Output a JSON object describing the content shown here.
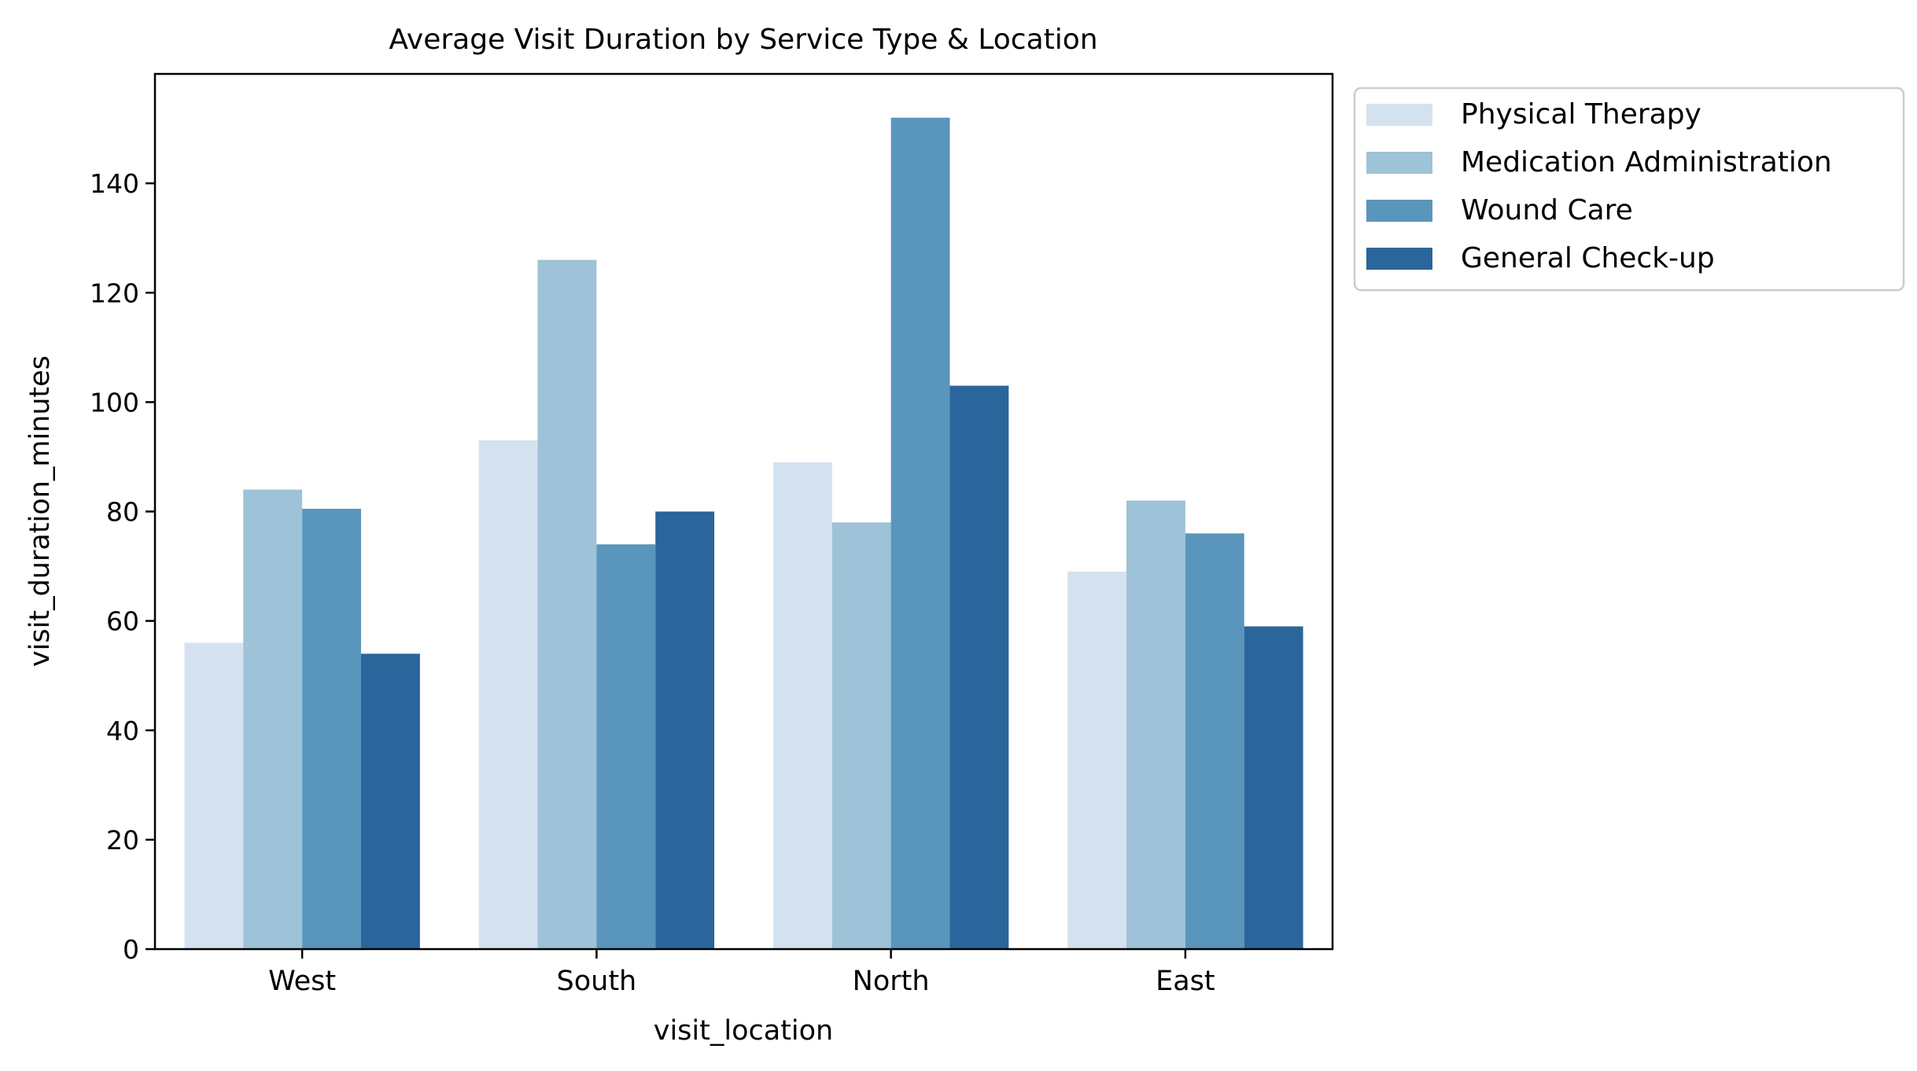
{
  "chart_data": {
    "type": "bar",
    "title": "Average Visit Duration by Service Type & Location",
    "xlabel": "visit_location",
    "ylabel": "visit_duration_minutes",
    "categories": [
      "West",
      "South",
      "North",
      "East"
    ],
    "ylim": [
      0,
      160
    ],
    "yticks": [
      "0",
      "20",
      "40",
      "60",
      "80",
      "100",
      "120",
      "140"
    ],
    "grid": false,
    "legend_position": "outside-top-right",
    "series": [
      {
        "name": "Physical Therapy",
        "color": "#d4e2f0",
        "values": [
          56,
          93,
          89,
          69
        ]
      },
      {
        "name": "Medication Administration",
        "color": "#9ec2d7",
        "values": [
          84,
          126,
          78,
          82
        ]
      },
      {
        "name": "Wound Care",
        "color": "#5a95bc",
        "values": [
          80.5,
          74,
          152,
          76
        ]
      },
      {
        "name": "General Check-up",
        "color": "#2a659b",
        "values": [
          54,
          80,
          103,
          59
        ]
      }
    ]
  }
}
